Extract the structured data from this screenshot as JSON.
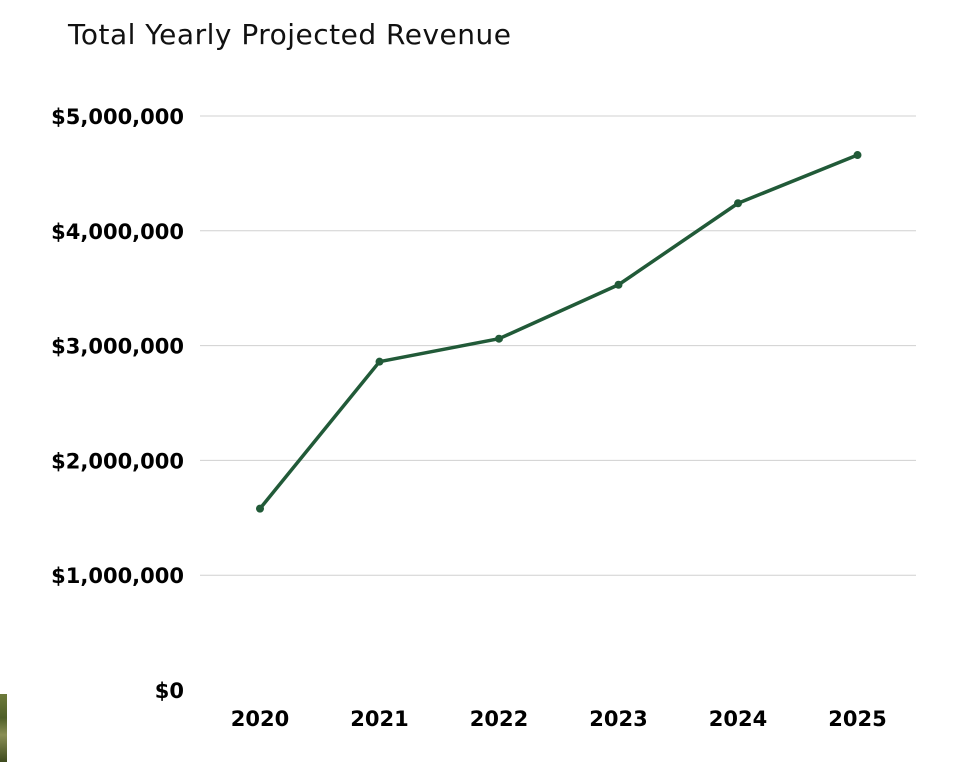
{
  "chart_data": {
    "type": "line",
    "title": "Total Yearly Projected Revenue",
    "xlabel": "",
    "ylabel": "",
    "categories": [
      "2020",
      "2021",
      "2022",
      "2023",
      "2024",
      "2025"
    ],
    "series": [
      {
        "values": [
          1580000,
          2860000,
          3060000,
          3530000,
          4240000,
          4660000
        ]
      }
    ],
    "ylim": [
      0,
      5000000
    ],
    "yticks": [
      0,
      1000000,
      2000000,
      3000000,
      4000000,
      5000000
    ],
    "ytick_labels": [
      "$0",
      "$1,000,000",
      "$2,000,000",
      "$3,000,000",
      "$4,000,000",
      "$5,000,000"
    ],
    "grid": true,
    "legend": "none",
    "line_color": "#215a38",
    "grid_color": "#d0d0d0"
  }
}
